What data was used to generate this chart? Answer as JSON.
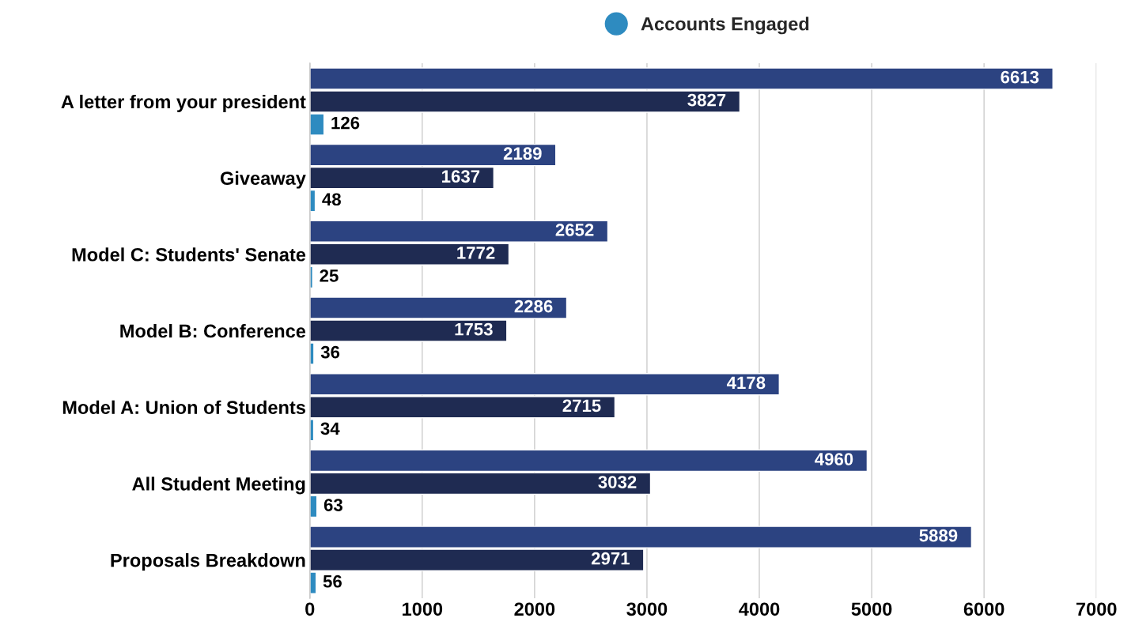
{
  "chart_data": {
    "type": "bar",
    "orientation": "horizontal",
    "categories": [
      "A letter from your president",
      "Giveaway",
      "Model C: Students' Senate",
      "Model B: Conference",
      "Model A: Union of Students",
      "All Student Meeting",
      "Proposals Breakdown"
    ],
    "series": [
      {
        "color": "#2c4381",
        "values": [
          6613,
          2189,
          2652,
          2286,
          4178,
          4960,
          5889
        ]
      },
      {
        "color": "#1f2b52",
        "values": [
          3827,
          1637,
          1772,
          1753,
          2715,
          3032,
          2971
        ]
      },
      {
        "name": "Accounts Engaged",
        "color": "#2e8bc0",
        "values": [
          126,
          48,
          25,
          36,
          34,
          63,
          56
        ]
      }
    ],
    "xlim": [
      0,
      7000
    ],
    "xticks": [
      0,
      1000,
      2000,
      3000,
      4000,
      5000,
      6000,
      7000
    ],
    "grid": "x",
    "legend": "top",
    "data_labels": true
  }
}
